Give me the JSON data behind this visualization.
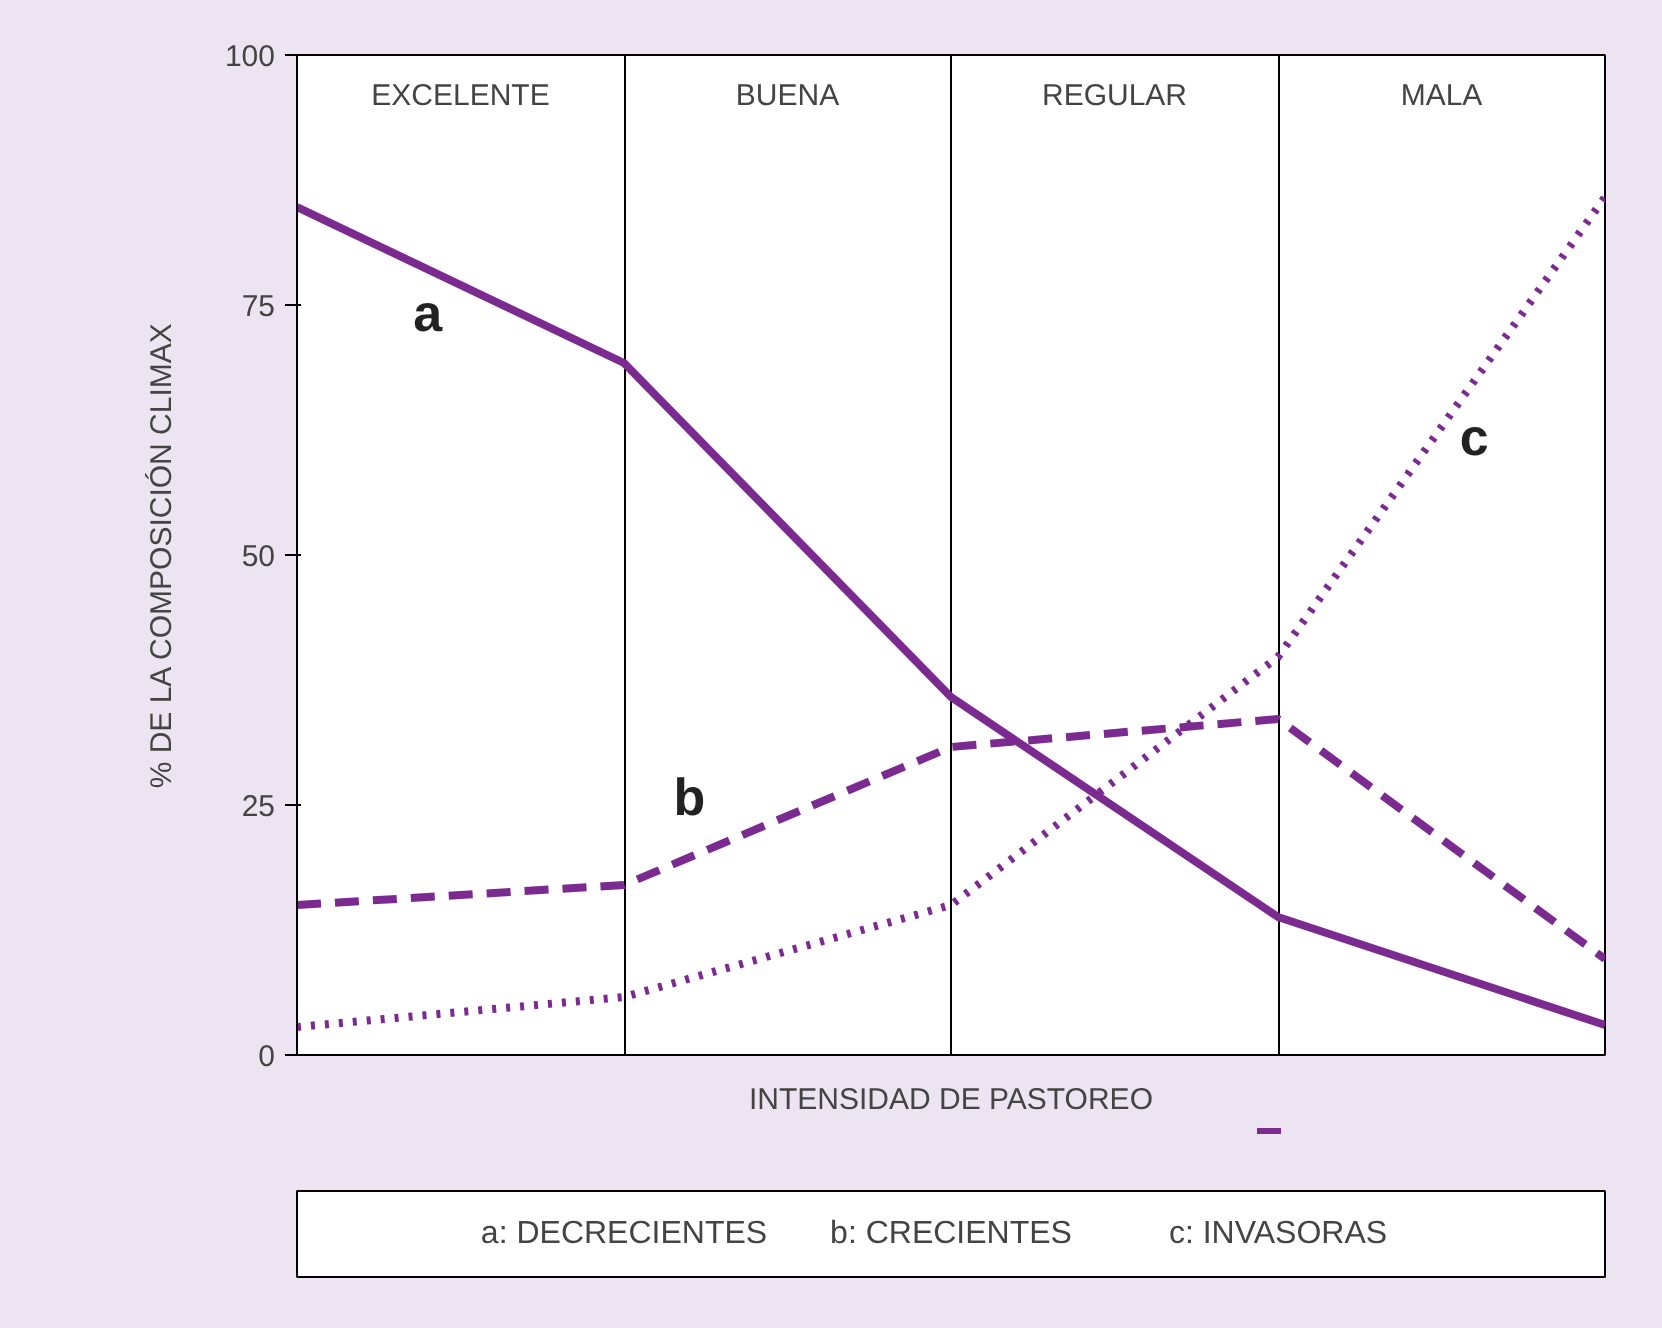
{
  "chart_data": {
    "type": "line",
    "xlabel": "INTENSIDAD DE PASTOREO",
    "ylabel": "% DE LA COMPOSICIÓN CLIMAX",
    "categories": [
      null,
      null,
      null,
      null,
      null
    ],
    "ylim": [
      0,
      100
    ],
    "yticks": [
      0,
      25,
      50,
      75,
      100
    ],
    "tick_labels": "y",
    "grid": "x",
    "series": [
      {
        "name": "a",
        "color": "#7b2a8f",
        "line_style": "solid",
        "values": [
          84.8,
          69.2,
          35.8,
          13.8,
          3
        ]
      },
      {
        "name": "b",
        "color": "#7b2a8f",
        "line_style": "dashed",
        "values": [
          15,
          17,
          30.8,
          33.6,
          9.6
        ]
      },
      {
        "name": "c",
        "color": "#7b2a8f",
        "line_style": "dotted",
        "values": [
          2.8,
          5.8,
          15,
          39.8,
          85.8
        ]
      }
    ],
    "annotations": [
      "EXCELENTE",
      "BUENA",
      "REGULAR",
      "MALA",
      "a: DECRECIENTES",
      "b: CRECIENTES",
      "c: INVASORAS"
    ]
  }
}
